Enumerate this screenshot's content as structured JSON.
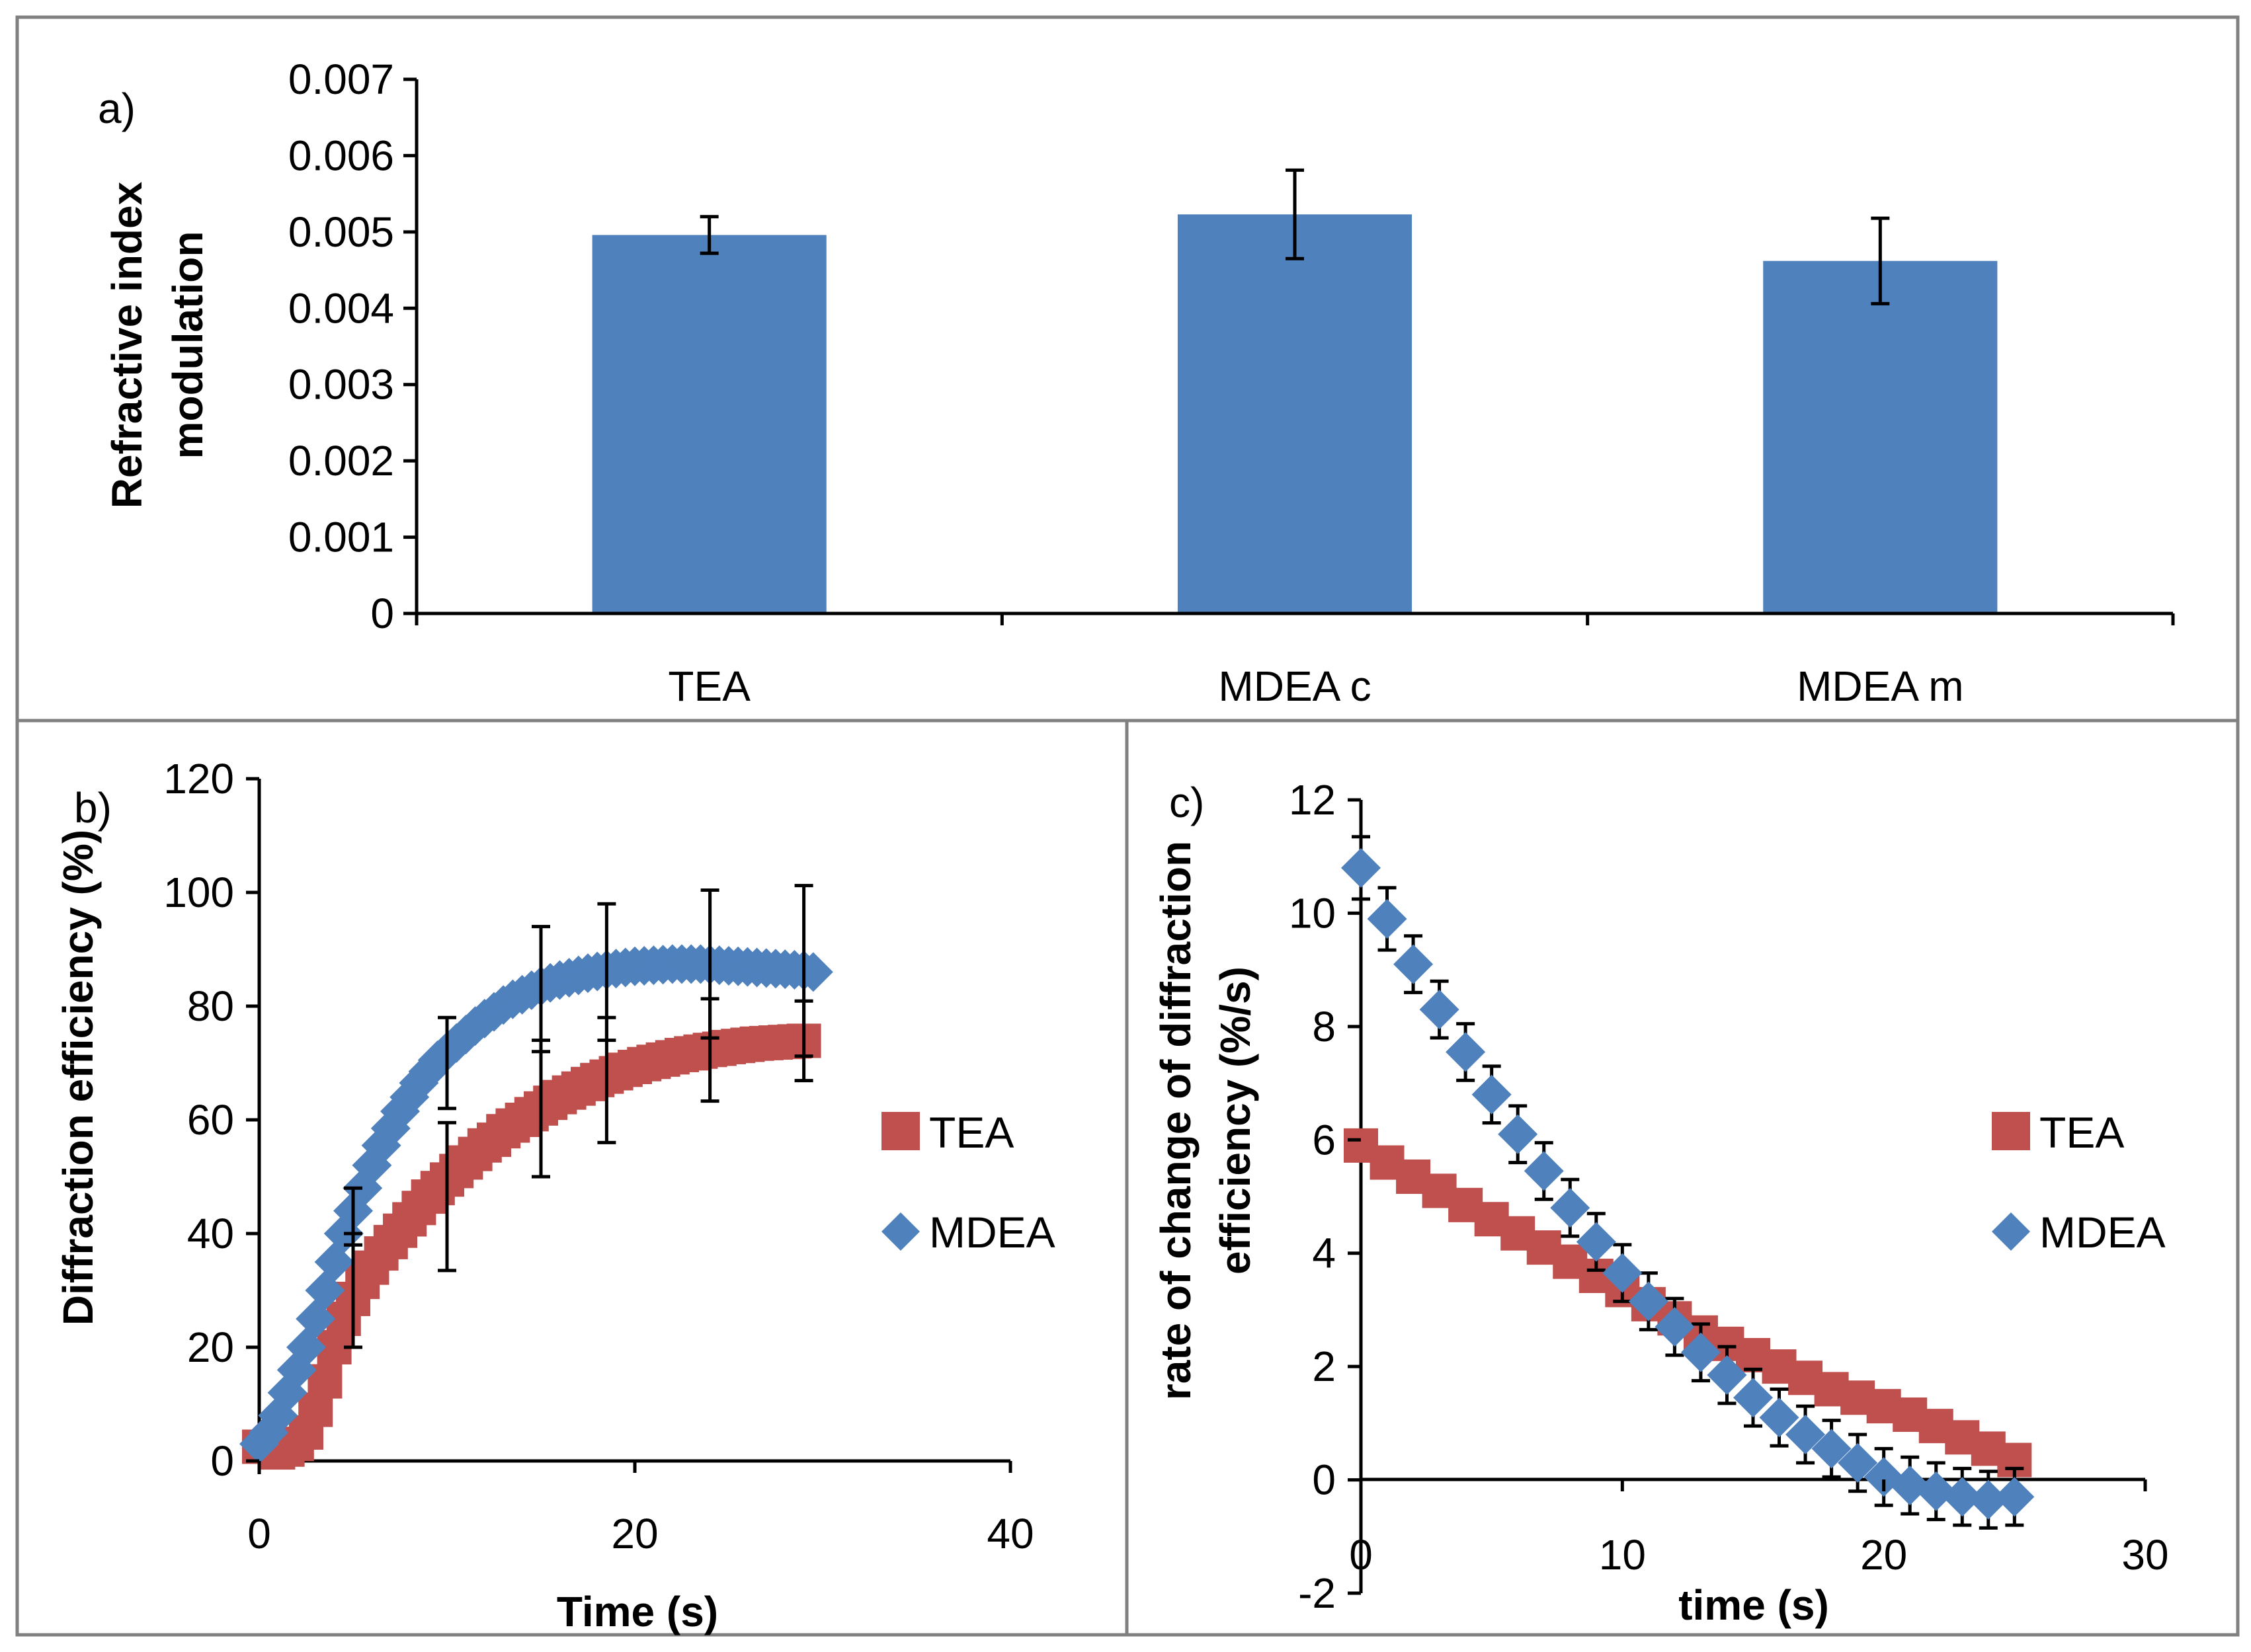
{
  "colors": {
    "blue": "#4F81BD",
    "red": "#C0504D",
    "frame": "#808080",
    "axis": "#000000"
  },
  "chart_data": [
    {
      "type": "bar",
      "panel_label": "a)",
      "title": "",
      "xlabel": "",
      "ylabel_lines": [
        "Refractive index",
        "modulation"
      ],
      "categories": [
        "TEA",
        "MDEA c",
        "MDEA m"
      ],
      "values": [
        0.00496,
        0.00523,
        0.00462
      ],
      "error": [
        0.00024,
        0.00058,
        0.00056
      ],
      "ylim": [
        0,
        0.007
      ],
      "yticks": [
        0,
        0.001,
        0.002,
        0.003,
        0.004,
        0.005,
        0.006,
        0.007
      ],
      "ytick_labels": [
        "0",
        "0.001",
        "0.002",
        "0.003",
        "0.004",
        "0.005",
        "0.006",
        "0.007"
      ],
      "grid": false,
      "legend": "none"
    },
    {
      "type": "scatter",
      "panel_label": "b)",
      "xlabel": "Time (s)",
      "ylabel": "Diffraction efficiency (%)",
      "xlim": [
        0,
        40
      ],
      "ylim": [
        0,
        120
      ],
      "xticks": [
        0,
        20,
        40
      ],
      "xtick_labels": [
        "0",
        "20",
        "40"
      ],
      "yticks": [
        0,
        20,
        40,
        60,
        80,
        100,
        120
      ],
      "ytick_labels": [
        "0",
        "20",
        "40",
        "60",
        "80",
        "100",
        "120"
      ],
      "legend": "right",
      "series": [
        {
          "name": "TEA",
          "marker": "square",
          "x": [
            0,
            1,
            1.5,
            2,
            2.5,
            3,
            3.5,
            4,
            4.5,
            5,
            5.5,
            6,
            6.5,
            7,
            7.5,
            8,
            8.5,
            9,
            9.5,
            10,
            10.5,
            11,
            11.5,
            12,
            12.5,
            13,
            13.5,
            14,
            14.5,
            15,
            15.5,
            16,
            16.5,
            17,
            17.5,
            18,
            18.5,
            19,
            19.5,
            20,
            20.5,
            21,
            21.5,
            22,
            22.5,
            23,
            23.5,
            24,
            24.5,
            25,
            25.5,
            26,
            26.5,
            27,
            27.5,
            28,
            28.5,
            29
          ],
          "y": [
            2.5,
            1.5,
            2,
            3,
            5,
            9,
            14,
            20,
            25,
            28.5,
            31.5,
            34,
            36.5,
            38.5,
            40.5,
            42.5,
            44.5,
            46.5,
            48,
            49.5,
            51,
            52.5,
            54,
            55.5,
            56.5,
            58,
            59,
            60,
            61,
            62,
            63,
            64,
            64.8,
            65.5,
            66.3,
            67,
            67.6,
            68.2,
            68.8,
            69.3,
            69.8,
            70.2,
            70.6,
            71,
            71.4,
            71.7,
            72,
            72.3,
            72.5,
            72.8,
            73,
            73.2,
            73.4,
            73.5,
            73.6,
            73.7,
            73.8,
            73.9
          ],
          "error_x": [
            5,
            10,
            15,
            18.5,
            24,
            29
          ],
          "error_y": [
            30,
            46.5,
            62,
            67,
            72.3,
            73.9
          ],
          "error_size": [
            10,
            13,
            12,
            11,
            9,
            7
          ]
        },
        {
          "name": "MDEA",
          "marker": "diamond",
          "x": [
            0,
            0.5,
            1,
            1.5,
            2,
            2.5,
            3,
            3.5,
            4,
            4.5,
            5,
            5.5,
            6,
            6.5,
            7,
            7.5,
            8,
            8.5,
            9,
            9.5,
            10,
            10.5,
            11,
            11.5,
            12,
            12.5,
            13,
            13.5,
            14,
            14.5,
            15,
            15.5,
            16,
            16.5,
            17,
            17.5,
            18,
            18.5,
            19,
            19.5,
            20,
            20.5,
            21,
            21.5,
            22,
            22.5,
            23,
            23.5,
            24,
            24.5,
            25,
            25.5,
            26,
            26.5,
            27,
            27.5,
            28,
            28.5,
            29,
            29.5
          ],
          "y": [
            3,
            5,
            8,
            12,
            16,
            20,
            25,
            30,
            35,
            40,
            44,
            48,
            52,
            55.5,
            58.5,
            61.5,
            64,
            66.5,
            68.5,
            70.5,
            72,
            73.5,
            75,
            76.5,
            77.8,
            79,
            80.2,
            81.2,
            82,
            82.8,
            83.5,
            84.1,
            84.6,
            85,
            85.4,
            85.8,
            86.1,
            86.4,
            86.6,
            86.8,
            87,
            87.1,
            87.2,
            87.3,
            87.4,
            87.4,
            87.4,
            87.4,
            87.3,
            87.2,
            87.1,
            87,
            86.9,
            86.8,
            86.7,
            86.6,
            86.5,
            86.4,
            86.3,
            86
          ],
          "error_x": [
            5,
            10,
            15,
            18.5,
            24,
            29
          ],
          "error_y": [
            43,
            70,
            83,
            86,
            87.4,
            86.2
          ],
          "error_size": [
            5,
            8,
            11,
            12,
            13,
            15
          ]
        }
      ]
    },
    {
      "type": "scatter",
      "panel_label": "c)",
      "xlabel": "time (s)",
      "ylabel_lines": [
        "rate of change of diffraction",
        "efficiency (%/s)"
      ],
      "xlim": [
        0,
        30
      ],
      "ylim": [
        -2,
        12
      ],
      "xticks": [
        0,
        10,
        20,
        30
      ],
      "xtick_labels": [
        "0",
        "10",
        "20",
        "30"
      ],
      "yticks": [
        -2,
        0,
        2,
        4,
        6,
        8,
        10,
        12
      ],
      "ytick_labels": [
        "-2",
        "0",
        "2",
        "4",
        "6",
        "8",
        "10",
        "12"
      ],
      "legend": "right",
      "series": [
        {
          "name": "TEA",
          "marker": "square",
          "x": [
            0,
            1,
            2,
            3,
            4,
            5,
            6,
            7,
            8,
            9,
            10,
            11,
            12,
            13,
            14,
            15,
            16,
            17,
            18,
            19,
            20,
            21,
            22,
            23,
            24,
            25
          ],
          "y": [
            5.9,
            5.6,
            5.35,
            5.1,
            4.85,
            4.6,
            4.35,
            4.1,
            3.85,
            3.6,
            3.35,
            3.1,
            2.85,
            2.6,
            2.4,
            2.2,
            2.0,
            1.8,
            1.6,
            1.45,
            1.3,
            1.15,
            0.95,
            0.75,
            0.55,
            0.35
          ],
          "error_x": [],
          "error_y": [],
          "error_size": []
        },
        {
          "name": "MDEA",
          "marker": "diamond",
          "x": [
            0,
            1,
            2,
            3,
            4,
            5,
            6,
            7,
            8,
            9,
            10,
            11,
            12,
            13,
            14,
            15,
            16,
            17,
            18,
            19,
            20,
            21,
            22,
            23,
            24,
            25
          ],
          "y": [
            10.8,
            9.9,
            9.1,
            8.3,
            7.55,
            6.8,
            6.1,
            5.45,
            4.8,
            4.2,
            3.65,
            3.15,
            2.7,
            2.25,
            1.85,
            1.45,
            1.1,
            0.8,
            0.55,
            0.3,
            0.05,
            -0.1,
            -0.2,
            -0.3,
            -0.35,
            -0.3
          ],
          "error_x": [
            0,
            1,
            2,
            3,
            4,
            5,
            6,
            7,
            8,
            9,
            10,
            11,
            12,
            13,
            14,
            15,
            16,
            17,
            18,
            19,
            20,
            21,
            22,
            23,
            24,
            25
          ],
          "error_y": [
            10.8,
            9.9,
            9.1,
            8.3,
            7.55,
            6.8,
            6.1,
            5.45,
            4.8,
            4.2,
            3.65,
            3.15,
            2.7,
            2.25,
            1.85,
            1.45,
            1.1,
            0.8,
            0.55,
            0.3,
            0.05,
            -0.1,
            -0.2,
            -0.3,
            -0.35,
            -0.3
          ],
          "error_size": [
            0.55,
            0.55,
            0.5,
            0.5,
            0.5,
            0.5,
            0.5,
            0.5,
            0.5,
            0.5,
            0.5,
            0.5,
            0.5,
            0.5,
            0.5,
            0.5,
            0.5,
            0.5,
            0.5,
            0.5,
            0.5,
            0.5,
            0.5,
            0.5,
            0.5,
            0.5
          ]
        }
      ]
    }
  ]
}
